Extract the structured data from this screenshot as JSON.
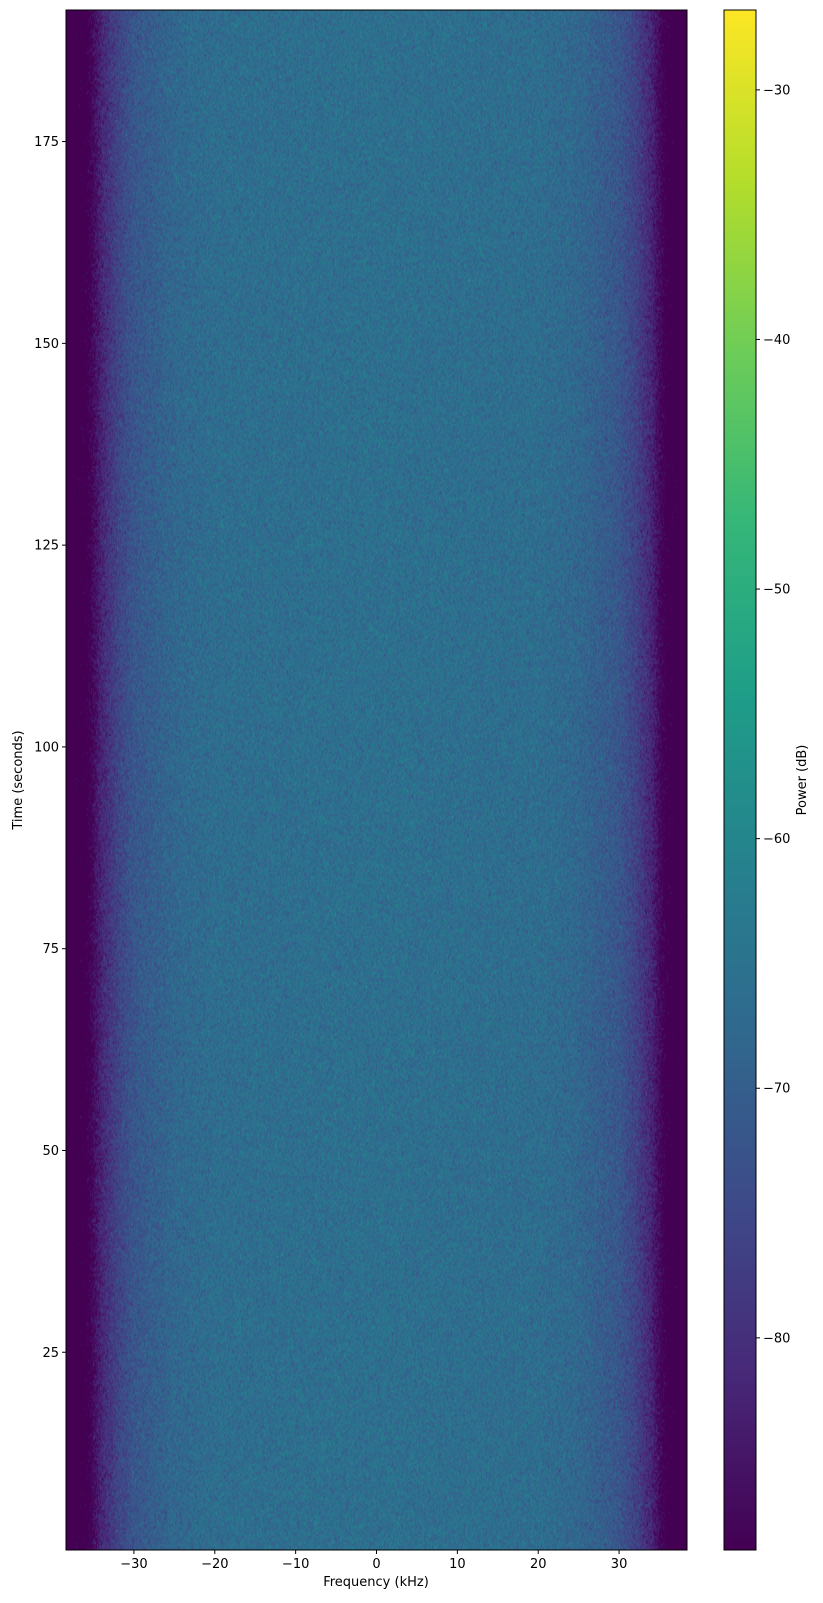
{
  "chart_data": {
    "type": "heatmap",
    "subtype": "spectrogram",
    "title": "",
    "xlabel": "Frequency (kHz)",
    "ylabel": "Time (seconds)",
    "xlim": [
      -38.4,
      38.4
    ],
    "ylim": [
      0.5,
      191.3
    ],
    "xticks": [
      -30,
      -20,
      -10,
      0,
      10,
      20,
      30
    ],
    "xtick_labels": [
      "−30",
      "−20",
      "−10",
      "0",
      "10",
      "20",
      "30"
    ],
    "yticks": [
      25,
      50,
      75,
      100,
      125,
      150,
      175
    ],
    "ytick_labels": [
      "25",
      "50",
      "75",
      "100",
      "125",
      "150",
      "175"
    ],
    "colormap": "viridis",
    "colorbar": {
      "label": "Power (dB)",
      "range": [
        -88.5,
        -26.8
      ],
      "ticks": [
        -80,
        -70,
        -60,
        -50,
        -40,
        -30
      ],
      "tick_labels": [
        "−80",
        "−70",
        "−60",
        "−50",
        "−40",
        "−30"
      ]
    },
    "mean_power_profile": {
      "frequency_khz": [
        -38.4,
        -36,
        -34,
        -32,
        -30,
        -25,
        -20,
        0,
        20,
        25,
        30,
        32,
        34,
        36,
        38.4
      ],
      "power_db": [
        -95,
        -92,
        -82,
        -76,
        -72,
        -68,
        -66.5,
        -66,
        -66.5,
        -68,
        -72,
        -76,
        -82,
        -92,
        -95
      ]
    },
    "noise_std_db": 2.5,
    "grid": false
  }
}
